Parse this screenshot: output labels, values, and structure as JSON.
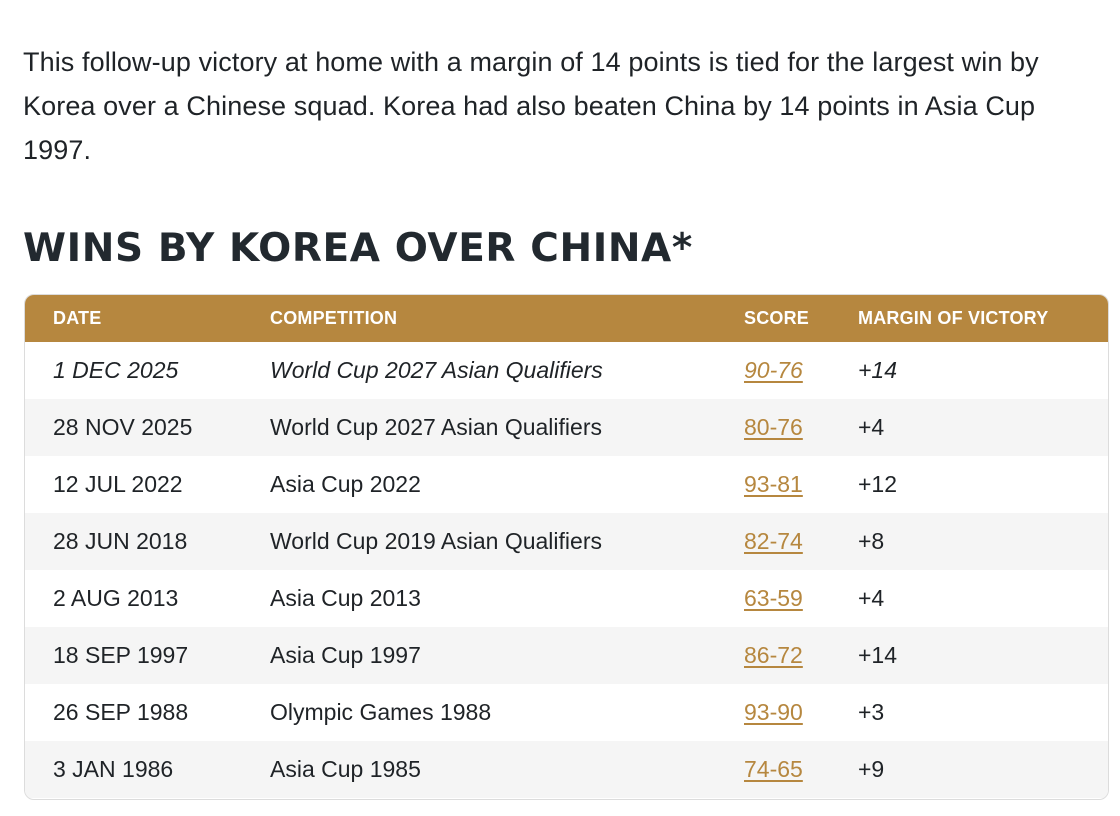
{
  "article": {
    "paragraph": "This follow-up victory at home with a margin of 14 points is tied for the largest win by Korea over a Chinese squad. Korea had also beaten China by 14 points in Asia Cup 1997.",
    "heading": "WINS BY KOREA OVER CHINA*"
  },
  "table": {
    "headers": {
      "date": "DATE",
      "competition": "COMPETITION",
      "score": "SCORE",
      "margin": "MARGIN OF VICTORY"
    },
    "rows": [
      {
        "date": "1 DEC 2025",
        "competition": "World Cup 2027 Asian Qualifiers",
        "score": "90-76",
        "margin": "+14"
      },
      {
        "date": "28 NOV 2025",
        "competition": "World Cup 2027 Asian Qualifiers",
        "score": "80-76",
        "margin": "+4"
      },
      {
        "date": "12 JUL 2022",
        "competition": "Asia Cup 2022",
        "score": "93-81",
        "margin": "+12"
      },
      {
        "date": "28 JUN 2018",
        "competition": "World Cup 2019 Asian Qualifiers",
        "score": "82-74",
        "margin": "+8"
      },
      {
        "date": "2 AUG 2013",
        "competition": "Asia Cup 2013",
        "score": "63-59",
        "margin": "+4"
      },
      {
        "date": "18 SEP 1997",
        "competition": "Asia Cup 1997",
        "score": "86-72",
        "margin": "+14"
      },
      {
        "date": "26 SEP 1988",
        "competition": "Olympic Games 1988",
        "score": "93-90",
        "margin": "+3"
      },
      {
        "date": "3 JAN 1986",
        "competition": "Asia Cup 1985",
        "score": "74-65",
        "margin": "+9"
      }
    ]
  },
  "colors": {
    "header_bg": "#b6873f",
    "link": "#b6873f",
    "stripe": "#f5f5f5"
  }
}
